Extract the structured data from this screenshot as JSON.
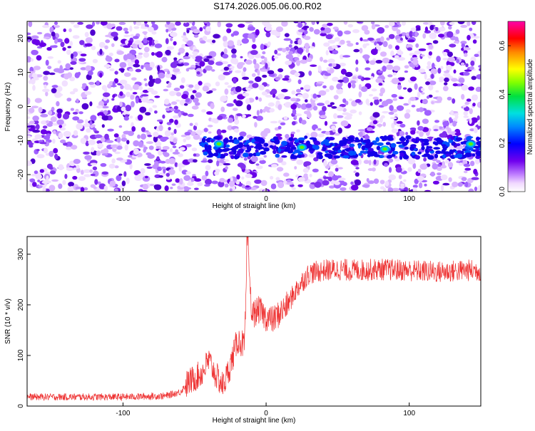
{
  "title": "S174.2026.005.06.00.R02",
  "chart_data": [
    {
      "type": "heatmap",
      "xlabel": "Height of straight line (km)",
      "ylabel": "Frequency (Hz)",
      "xlim": [
        -167,
        150
      ],
      "ylim": [
        -25,
        25
      ],
      "xticks": [
        -100,
        0,
        100
      ],
      "yticks": [
        -20,
        -10,
        0,
        10,
        20
      ],
      "colorbar": {
        "label": "Normalized spectral amplitude",
        "range": [
          0,
          0.7
        ],
        "ticks": [
          0.0,
          0.2,
          0.4,
          0.6
        ]
      },
      "signal_band": {
        "x_start": -45,
        "x_end": 150,
        "frequency_center": -12,
        "peaks": [
          {
            "x": -33,
            "y": -11,
            "amplitude": 0.45
          },
          {
            "x": 25,
            "y": -12,
            "amplitude": 0.4
          },
          {
            "x": 83,
            "y": -12.5,
            "amplitude": 0.5
          },
          {
            "x": 143,
            "y": -11,
            "amplitude": 0.45
          }
        ]
      }
    },
    {
      "type": "line",
      "xlabel": "Height of straight line (km)",
      "ylabel": "SNR (10 * v/v)",
      "xlim": [
        -167,
        150
      ],
      "ylim": [
        0,
        335
      ],
      "xticks": [
        -100,
        0,
        100
      ],
      "yticks": [
        0,
        100,
        200,
        300
      ],
      "color": "#ee3333",
      "series": [
        {
          "x": [
            -167,
            -140,
            -100,
            -70,
            -60,
            -55,
            -50,
            -45,
            -40,
            -35,
            -30,
            -25,
            -20,
            -15,
            -13,
            -10,
            -5,
            0,
            5,
            10,
            15,
            20,
            25,
            30,
            40,
            50,
            60,
            80,
            100,
            120,
            140,
            150
          ],
          "y": [
            18,
            18,
            18,
            20,
            28,
            45,
            55,
            65,
            90,
            60,
            40,
            80,
            130,
            120,
            325,
            180,
            190,
            175,
            170,
            185,
            200,
            225,
            245,
            262,
            268,
            270,
            268,
            270,
            268,
            265,
            268,
            268
          ]
        }
      ]
    }
  ]
}
